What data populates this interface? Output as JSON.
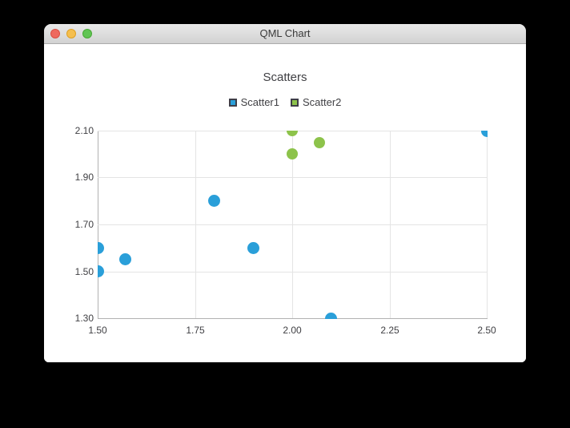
{
  "window": {
    "title": "QML Chart"
  },
  "chart_data": {
    "type": "scatter",
    "title": "Scatters",
    "series": [
      {
        "name": "Scatter1",
        "color": "#2a9fd9",
        "marker_size": 15,
        "points": [
          [
            1.5,
            1.5
          ],
          [
            1.5,
            1.6
          ],
          [
            1.57,
            1.55
          ],
          [
            1.8,
            1.8
          ],
          [
            1.9,
            1.6
          ],
          [
            2.1,
            1.3
          ],
          [
            2.5,
            2.1
          ]
        ]
      },
      {
        "name": "Scatter2",
        "color": "#8dc34b",
        "marker_size": 14,
        "points": [
          [
            2.0,
            2.0
          ],
          [
            2.0,
            2.1
          ],
          [
            2.07,
            2.05
          ]
        ]
      }
    ],
    "x_axis": {
      "min": 1.5,
      "max": 2.5,
      "tick_step": 0.25,
      "tick_labels": [
        "1.50",
        "1.75",
        "2.00",
        "2.25",
        "2.50"
      ]
    },
    "y_axis": {
      "min": 1.3,
      "max": 2.1,
      "tick_step": 0.2,
      "tick_labels": [
        "1.30",
        "1.50",
        "1.70",
        "1.90",
        "2.10"
      ]
    },
    "grid": true,
    "legend_position": "top",
    "colors": {
      "grid_line": "#e4e4e4",
      "axis_line": "#b2b2b2",
      "label_text": "#404044",
      "legend_marker_border": "#3e3e48"
    }
  }
}
